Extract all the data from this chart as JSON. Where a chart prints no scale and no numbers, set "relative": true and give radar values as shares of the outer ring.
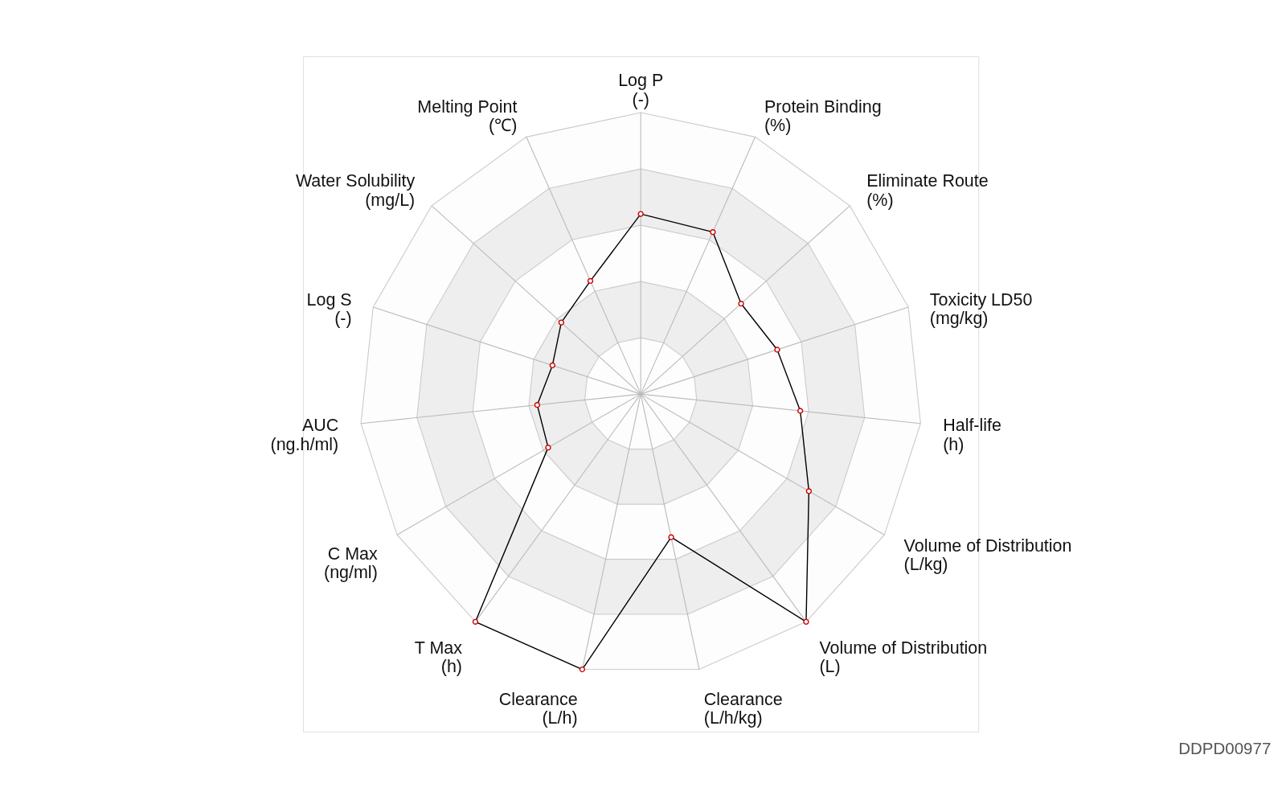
{
  "chart_data": {
    "type": "radar",
    "relative": true,
    "grid": true,
    "marker": "circle",
    "categories": [
      "Log P\n(-)",
      "Protein Binding\n(%)",
      "Eliminate Route\n(%)",
      "Toxicity LD50\n(mg/kg)",
      "Half-life\n(h)",
      "Volume of Distribution\n(L/kg)",
      "Volume of Distribution\n(L)",
      "Clearance\n(L/h/kg)",
      "Clearance\n(L/h)",
      "T Max\n(h)",
      "C Max\n(ng/ml)",
      "AUC\n(ng.h/ml)",
      "Log S\n(-)",
      "Water Solubility\n(mg/L)",
      "Melting Point\n(℃)"
    ],
    "series": [
      {
        "color": "#000000",
        "values": [
          0.64,
          0.63,
          0.48,
          0.51,
          0.57,
          0.69,
          1.0,
          0.52,
          1.0,
          1.0,
          0.38,
          0.37,
          0.33,
          0.38,
          0.44
        ]
      }
    ],
    "annotations": [
      "DDPD00977"
    ]
  }
}
